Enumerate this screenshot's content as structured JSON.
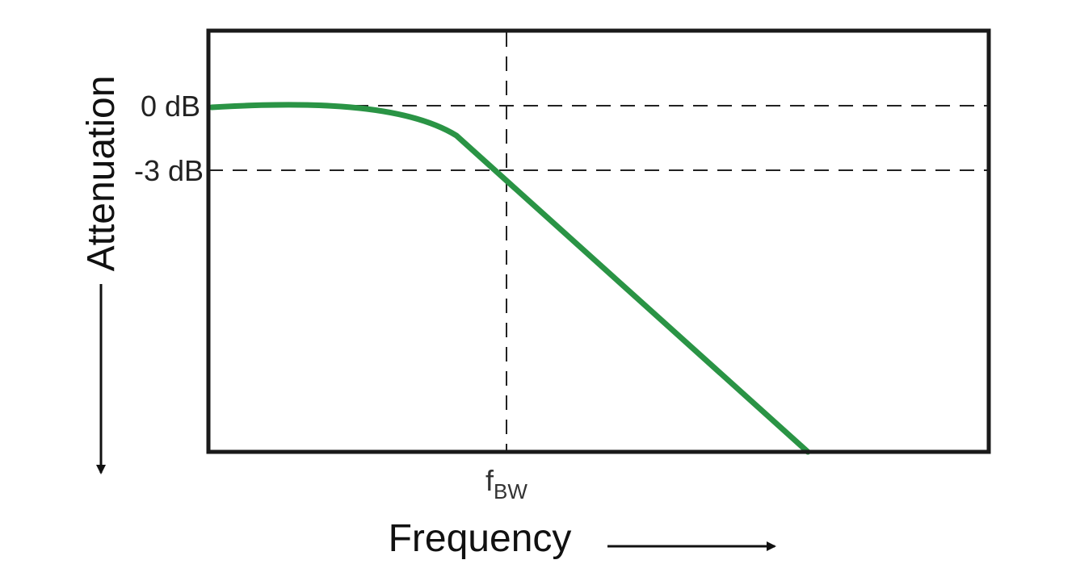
{
  "chart_data": {
    "type": "line",
    "xlabel": "Frequency",
    "ylabel": "Attenuation",
    "y_ticks": [
      {
        "label": "0 dB",
        "value": 0
      },
      {
        "label": "-3 dB",
        "value": -3
      }
    ],
    "x_marker": {
      "label_main": "f",
      "label_sub": "BW"
    },
    "series": [
      {
        "color": "#2a9445"
      }
    ],
    "grid": "dashed reference lines at 0 dB, -3 dB and f_BW",
    "axis_arrows": [
      "down (attenuation increases)",
      "right (frequency increases)"
    ],
    "colors": {
      "curve": "#2a9445",
      "frame": "#1a1a1a",
      "reference_lines": "#222222"
    }
  }
}
